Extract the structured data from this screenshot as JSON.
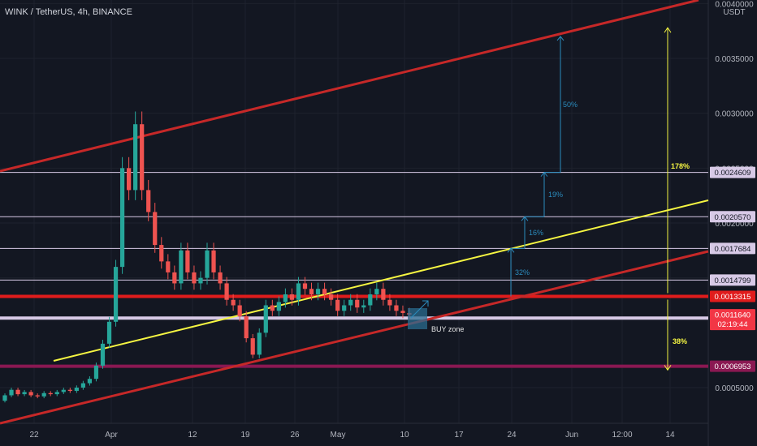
{
  "header": {
    "title": "WINK / TetherUS, 4h, BINANCE",
    "currency": "USDT"
  },
  "chart_data": {
    "type": "candlestick",
    "symbol": "WINK / TetherUS",
    "interval": "4h",
    "exchange": "BINANCE",
    "x_ticks": [
      "22",
      "Apr",
      "12",
      "19",
      "26",
      "May",
      "10",
      "17",
      "24",
      "Jun",
      "12:00",
      "14"
    ],
    "y_ticks": [
      "0.0005000",
      "0.0015000",
      "0.0020000",
      "0.0025000",
      "0.0030000",
      "0.0035000",
      "0.0040000"
    ],
    "ylim": [
      0.0002,
      0.0041
    ],
    "horizontal_levels": [
      {
        "price": 0.0024609,
        "label": "0.0024609",
        "color": "#d7c9e6",
        "style": "thin"
      },
      {
        "price": 0.002057,
        "label": "0.0020570",
        "color": "#d7c9e6",
        "style": "thin"
      },
      {
        "price": 0.0017684,
        "label": "0.0017684",
        "color": "#d7c9e6",
        "style": "thin"
      },
      {
        "price": 0.0014799,
        "label": "0.0014799",
        "color": "#d7c9e6",
        "style": "thin"
      },
      {
        "price": 0.0013315,
        "label": "0.0013315",
        "color": "#e01c1c",
        "style": "thick"
      },
      {
        "price": 0.0011337,
        "label": "0.0011337",
        "color": "#d7c9e6",
        "style": "thick"
      },
      {
        "price": 0.0006953,
        "label": "0.0006953",
        "color": "#8a1852",
        "style": "thick"
      }
    ],
    "last_price": {
      "label": "0.0011640",
      "countdown": "02:19:44",
      "color": "#f23645"
    },
    "annotations": {
      "percents": [
        "32%",
        "16%",
        "19%",
        "50%"
      ],
      "range_up": "178%",
      "range_down": "38%",
      "buy_zone": "BUY zone"
    },
    "candles": [
      [
        0.00038,
        0.00043
      ],
      [
        0.00043,
        0.00048
      ],
      [
        0.00048,
        0.00044
      ],
      [
        0.00044,
        0.00046
      ],
      [
        0.00046,
        0.00043
      ],
      [
        0.00043,
        0.00042
      ],
      [
        0.00042,
        0.00045
      ],
      [
        0.00045,
        0.00044
      ],
      [
        0.00044,
        0.00046
      ],
      [
        0.00046,
        0.00048
      ],
      [
        0.00048,
        0.00047
      ],
      [
        0.00047,
        0.0005
      ],
      [
        0.0005,
        0.00054
      ],
      [
        0.00054,
        0.00058
      ],
      [
        0.00058,
        0.0007
      ],
      [
        0.0007,
        0.0009
      ],
      [
        0.0009,
        0.0011
      ],
      [
        0.0011,
        0.0016
      ],
      [
        0.0016,
        0.0025
      ],
      [
        0.0025,
        0.0023
      ],
      [
        0.0023,
        0.0029
      ],
      [
        0.0029,
        0.0023
      ],
      [
        0.0023,
        0.0021
      ],
      [
        0.0021,
        0.0018
      ],
      [
        0.0018,
        0.00165
      ],
      [
        0.00165,
        0.00155
      ],
      [
        0.00155,
        0.00145
      ],
      [
        0.00145,
        0.00175
      ],
      [
        0.00175,
        0.00155
      ],
      [
        0.00155,
        0.00145
      ],
      [
        0.00145,
        0.0015
      ],
      [
        0.0015,
        0.00175
      ],
      [
        0.00175,
        0.00155
      ],
      [
        0.00155,
        0.00145
      ],
      [
        0.00145,
        0.0013
      ],
      [
        0.0013,
        0.00125
      ],
      [
        0.00125,
        0.00115
      ],
      [
        0.00115,
        0.00095
      ],
      [
        0.00095,
        0.0008
      ],
      [
        0.0008,
        0.001
      ],
      [
        0.001,
        0.00125
      ],
      [
        0.00125,
        0.0012
      ],
      [
        0.0012,
        0.00128
      ],
      [
        0.00128,
        0.00135
      ],
      [
        0.00135,
        0.0013
      ],
      [
        0.0013,
        0.00145
      ],
      [
        0.00145,
        0.0014
      ],
      [
        0.0014,
        0.00135
      ],
      [
        0.00135,
        0.0014
      ],
      [
        0.0014,
        0.00135
      ],
      [
        0.00135,
        0.0013
      ],
      [
        0.0013,
        0.0012
      ],
      [
        0.0012,
        0.00125
      ],
      [
        0.00125,
        0.0013
      ],
      [
        0.0013,
        0.00123
      ],
      [
        0.00123,
        0.00125
      ],
      [
        0.00125,
        0.00135
      ],
      [
        0.00135,
        0.0014
      ],
      [
        0.0014,
        0.0013
      ],
      [
        0.0013,
        0.00125
      ],
      [
        0.00125,
        0.0012
      ],
      [
        0.0012,
        0.00118
      ],
      [
        0.00118,
        0.001164
      ]
    ]
  }
}
